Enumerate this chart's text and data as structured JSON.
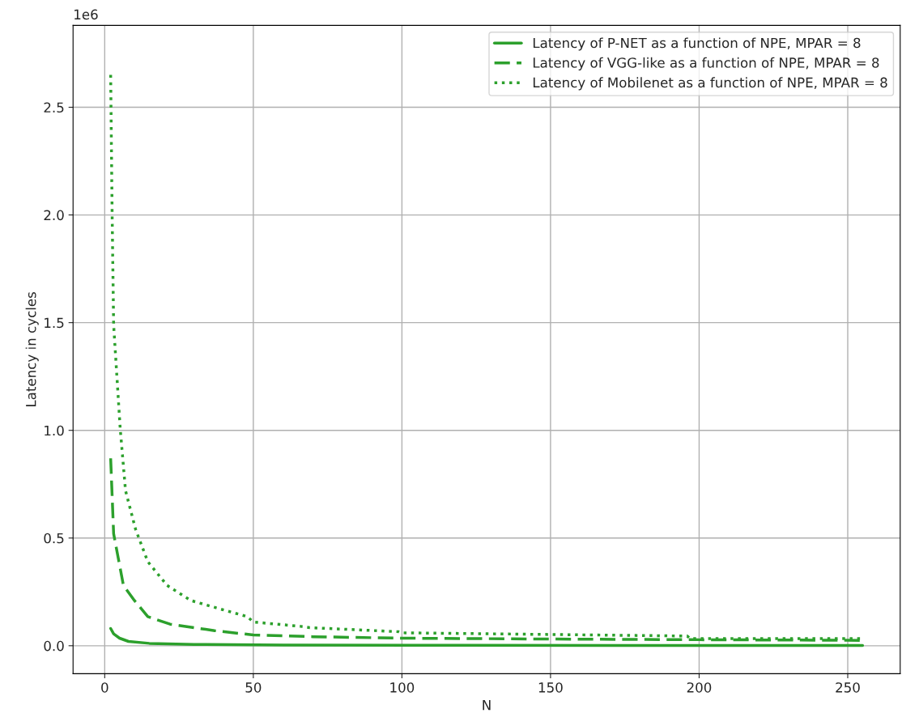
{
  "chart_data": {
    "type": "line",
    "xlabel": "N",
    "ylabel": "Latency in cycles",
    "annotations": [
      "1e6"
    ],
    "xlim": [
      -10.65,
      267.65
    ],
    "xticks": [
      0,
      50,
      100,
      150,
      200,
      250
    ],
    "ylim": [
      -0.13,
      2.88
    ],
    "yticks": [
      {
        "value": 0,
        "label": "0.0"
      },
      0.5,
      {
        "value": 1,
        "label": "1.0"
      },
      1.5,
      {
        "value": 2,
        "label": "2.0"
      },
      2.5
    ],
    "grid": true,
    "legend": "top right",
    "series": [
      {
        "name": "Latency of P-NET as a function of NPE, MPAR = 8",
        "color": "#2ca02c",
        "line_style": "solid",
        "x": [
          2,
          3,
          5,
          8,
          15,
          30,
          60,
          120,
          255
        ],
        "values": [
          0.08,
          0.055,
          0.035,
          0.02,
          0.011,
          0.006,
          0.003,
          0.002,
          0.001
        ]
      },
      {
        "name": "Latency of VGG-like as a function of NPE, MPAR = 8",
        "color": "#2ca02c",
        "line_style": "dashed",
        "x": [
          2,
          3,
          6.3,
          10,
          14.5,
          22,
          37,
          50,
          70,
          100,
          150,
          200,
          255
        ],
        "values": [
          0.87,
          0.52,
          0.28,
          0.21,
          0.135,
          0.1,
          0.07,
          0.05,
          0.042,
          0.035,
          0.031,
          0.028,
          0.025
        ]
      },
      {
        "name": "Latency of Mobilenet as a function of NPE, MPAR = 8",
        "color": "#2ca02c",
        "line_style": "dotted",
        "x": [
          2,
          2.5,
          3,
          5.2,
          7,
          10.4,
          14.5,
          21,
          29,
          39,
          48,
          50,
          66,
          69,
          99,
          100,
          196,
          197,
          255
        ],
        "values": [
          2.65,
          2.0,
          1.49,
          1.01,
          0.72,
          0.54,
          0.39,
          0.28,
          0.21,
          0.17,
          0.135,
          0.11,
          0.09,
          0.084,
          0.065,
          0.06,
          0.045,
          0.033,
          0.033
        ]
      }
    ]
  }
}
